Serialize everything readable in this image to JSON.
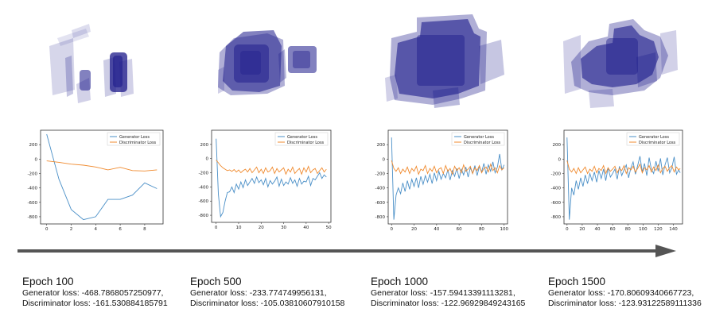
{
  "colors": {
    "generator": "#4a8fc7",
    "discriminator": "#f08a2e",
    "voxel": "#1c1a8a",
    "arrow": "#555555"
  },
  "chart_data": [
    {
      "type": "line",
      "ylim": [
        -900,
        400
      ],
      "xlim": [
        -0.5,
        9.5
      ],
      "yticks": [
        200,
        0,
        -200,
        -400,
        -600,
        -800
      ],
      "xticks": [
        0,
        2,
        4,
        6,
        8
      ],
      "legend": "top-right",
      "series": [
        {
          "name": "Generator Loss",
          "x": [
            0,
            1,
            2,
            3,
            4,
            5,
            6,
            7,
            8,
            9
          ],
          "values": [
            345,
            -280,
            -700,
            -840,
            -800,
            -560,
            -560,
            -500,
            -330,
            -410
          ]
        },
        {
          "name": "Discriminator Loss",
          "x": [
            0,
            1,
            2,
            3,
            4,
            5,
            6,
            7,
            8,
            9
          ],
          "values": [
            -25,
            -45,
            -70,
            -85,
            -110,
            -150,
            -115,
            -160,
            -165,
            -150
          ]
        }
      ]
    },
    {
      "type": "line",
      "ylim": [
        -900,
        400
      ],
      "xlim": [
        -2,
        51
      ],
      "yticks": [
        200,
        0,
        -200,
        -400,
        -600,
        -800
      ],
      "xticks": [
        0,
        10,
        20,
        30,
        40,
        50
      ],
      "legend": "top-right",
      "series": [
        {
          "name": "Generator Loss",
          "x": [
            0,
            1,
            2,
            3,
            4,
            5,
            6,
            7,
            8,
            9,
            10,
            11,
            12,
            13,
            14,
            15,
            16,
            17,
            18,
            19,
            20,
            21,
            22,
            23,
            24,
            25,
            26,
            27,
            28,
            29,
            30,
            31,
            32,
            33,
            34,
            35,
            36,
            37,
            38,
            39,
            40,
            41,
            42,
            43,
            44,
            45,
            46,
            47,
            48,
            49
          ],
          "values": [
            280,
            -500,
            -820,
            -760,
            -600,
            -480,
            -470,
            -400,
            -480,
            -360,
            -430,
            -330,
            -410,
            -300,
            -380,
            -330,
            -280,
            -350,
            -260,
            -340,
            -300,
            -370,
            -280,
            -400,
            -310,
            -360,
            -320,
            -260,
            -390,
            -290,
            -380,
            -330,
            -360,
            -270,
            -350,
            -300,
            -390,
            -280,
            -360,
            -320,
            -330,
            -250,
            -380,
            -280,
            -300,
            -250,
            -200,
            -280,
            -230,
            -260
          ]
        },
        {
          "name": "Discriminator Loss",
          "x": [
            0,
            1,
            2,
            3,
            4,
            5,
            6,
            7,
            8,
            9,
            10,
            11,
            12,
            13,
            14,
            15,
            16,
            17,
            18,
            19,
            20,
            21,
            22,
            23,
            24,
            25,
            26,
            27,
            28,
            29,
            30,
            31,
            32,
            33,
            34,
            35,
            36,
            37,
            38,
            39,
            40,
            41,
            42,
            43,
            44,
            45,
            46,
            47,
            48,
            49
          ],
          "values": [
            -20,
            -60,
            -100,
            -130,
            -150,
            -170,
            -160,
            -180,
            -155,
            -190,
            -160,
            -200,
            -170,
            -150,
            -190,
            -140,
            -200,
            -160,
            -120,
            -200,
            -150,
            -210,
            -130,
            -190,
            -170,
            -120,
            -210,
            -140,
            -190,
            -160,
            -130,
            -220,
            -150,
            -190,
            -120,
            -210,
            -170,
            -140,
            -220,
            -130,
            -190,
            -110,
            -200,
            -160,
            -140,
            -210,
            -170,
            -130,
            -190,
            -150
          ]
        }
      ]
    },
    {
      "type": "line",
      "ylim": [
        -900,
        400
      ],
      "xlim": [
        -3,
        103
      ],
      "yticks": [
        200,
        0,
        -200,
        -400,
        -600,
        -800
      ],
      "xticks": [
        0,
        20,
        40,
        60,
        80,
        100
      ],
      "legend": "top-right",
      "series": [
        {
          "name": "Generator Loss",
          "x": [
            0,
            2,
            4,
            6,
            8,
            10,
            12,
            14,
            16,
            18,
            20,
            22,
            24,
            26,
            28,
            30,
            32,
            34,
            36,
            38,
            40,
            42,
            44,
            46,
            48,
            50,
            52,
            54,
            56,
            58,
            60,
            62,
            64,
            66,
            68,
            70,
            72,
            74,
            76,
            78,
            80,
            82,
            84,
            86,
            88,
            90,
            92,
            94,
            96,
            98,
            100
          ],
          "values": [
            300,
            -840,
            -500,
            -400,
            -480,
            -330,
            -450,
            -300,
            -420,
            -280,
            -380,
            -260,
            -400,
            -240,
            -350,
            -230,
            -320,
            -210,
            -340,
            -190,
            -300,
            -170,
            -280,
            -200,
            -260,
            -150,
            -290,
            -160,
            -240,
            -130,
            -270,
            -140,
            -220,
            -110,
            -250,
            -120,
            -200,
            -90,
            -230,
            -100,
            -180,
            -60,
            -210,
            -80,
            -170,
            -40,
            -190,
            -110,
            70,
            -150,
            -80
          ]
        },
        {
          "name": "Discriminator Loss",
          "x": [
            0,
            2,
            4,
            6,
            8,
            10,
            12,
            14,
            16,
            18,
            20,
            22,
            24,
            26,
            28,
            30,
            32,
            34,
            36,
            38,
            40,
            42,
            44,
            46,
            48,
            50,
            52,
            54,
            56,
            58,
            60,
            62,
            64,
            66,
            68,
            70,
            72,
            74,
            76,
            78,
            80,
            82,
            84,
            86,
            88,
            90,
            92,
            94,
            96,
            98,
            100
          ],
          "values": [
            -20,
            -130,
            -170,
            -120,
            -200,
            -140,
            -180,
            -110,
            -200,
            -130,
            -170,
            -100,
            -210,
            -140,
            -160,
            -90,
            -200,
            -130,
            -170,
            -100,
            -190,
            -140,
            -120,
            -200,
            -90,
            -170,
            -130,
            -210,
            -100,
            -160,
            -120,
            -190,
            -80,
            -170,
            -140,
            -100,
            -200,
            -120,
            -160,
            -90,
            -190,
            -130,
            -110,
            -180,
            -70,
            -160,
            -120,
            -190,
            -90,
            -150,
            -120
          ]
        }
      ]
    },
    {
      "type": "line",
      "ylim": [
        -900,
        400
      ],
      "xlim": [
        -4,
        152
      ],
      "yticks": [
        200,
        0,
        -200,
        -400,
        -600,
        -800
      ],
      "xticks": [
        0,
        20,
        40,
        60,
        80,
        100,
        120,
        140
      ],
      "legend": "top-right",
      "series": [
        {
          "name": "Generator Loss",
          "x": [
            0,
            3,
            6,
            9,
            12,
            15,
            18,
            21,
            24,
            27,
            30,
            33,
            36,
            39,
            42,
            45,
            48,
            51,
            54,
            57,
            60,
            63,
            66,
            69,
            72,
            75,
            78,
            81,
            84,
            87,
            90,
            93,
            96,
            99,
            102,
            105,
            108,
            111,
            114,
            117,
            120,
            123,
            126,
            129,
            132,
            135,
            138,
            141,
            144,
            147,
            149
          ],
          "values": [
            300,
            -840,
            -400,
            -500,
            -300,
            -420,
            -260,
            -380,
            -220,
            -340,
            -200,
            -300,
            -180,
            -320,
            -160,
            -270,
            -140,
            -300,
            -120,
            -250,
            -200,
            -140,
            -280,
            -100,
            -230,
            -150,
            -80,
            -260,
            -120,
            -40,
            -210,
            -90,
            40,
            -180,
            -60,
            -230,
            20,
            -140,
            -200,
            -30,
            -170,
            10,
            -220,
            -80,
            20,
            -190,
            -120,
            30,
            -210,
            -150,
            -190
          ]
        },
        {
          "name": "Discriminator Loss",
          "x": [
            0,
            3,
            6,
            9,
            12,
            15,
            18,
            21,
            24,
            27,
            30,
            33,
            36,
            39,
            42,
            45,
            48,
            51,
            54,
            57,
            60,
            63,
            66,
            69,
            72,
            75,
            78,
            81,
            84,
            87,
            90,
            93,
            96,
            99,
            102,
            105,
            108,
            111,
            114,
            117,
            120,
            123,
            126,
            129,
            132,
            135,
            138,
            141,
            144,
            147,
            149
          ],
          "values": [
            -20,
            -140,
            -180,
            -130,
            -200,
            -120,
            -190,
            -150,
            -110,
            -200,
            -140,
            -170,
            -100,
            -190,
            -130,
            -160,
            -90,
            -200,
            -120,
            -170,
            -140,
            -100,
            -190,
            -130,
            -160,
            -90,
            -200,
            -120,
            -150,
            -100,
            -180,
            -130,
            -70,
            -190,
            -120,
            -150,
            -90,
            -180,
            -110,
            -160,
            -80,
            -190,
            -130,
            -100,
            -170,
            -120,
            -90,
            -180,
            -110,
            -150,
            -130
          ]
        }
      ]
    }
  ],
  "captions": [
    {
      "epoch": "Epoch 100",
      "gen": "Generator loss: -468.7868057250977,",
      "disc": "Discriminator loss: -161.530884185791"
    },
    {
      "epoch": "Epoch 500",
      "gen": "Generator loss: -233.774749956131,",
      "disc": "Discriminator loss: -105.03810607910158"
    },
    {
      "epoch": "Epoch 1000",
      "gen": "Generator loss: -157.59413391113281,",
      "disc": "Discriminator loss: -122.96929849243165"
    },
    {
      "epoch": "Epoch 1500",
      "gen": "Generator loss: -170.80609340667723,",
      "disc": "Discriminator loss: -123.93122589111336"
    }
  ]
}
